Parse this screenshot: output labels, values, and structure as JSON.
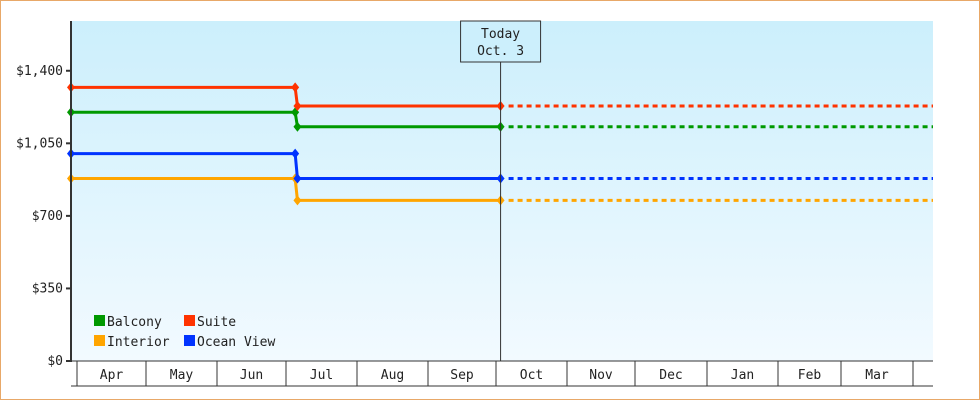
{
  "chart_data": {
    "type": "line",
    "subtype": "step",
    "ylim": [
      0,
      1640
    ],
    "yticks": [
      {
        "value": 0,
        "label": "$0"
      },
      {
        "value": 350,
        "label": "$350"
      },
      {
        "value": 700,
        "label": "$700"
      },
      {
        "value": 1050,
        "label": "$1,050"
      },
      {
        "value": 1400,
        "label": "$1,400"
      }
    ],
    "months": [
      "Apr",
      "May",
      "Jun",
      "Jul",
      "Aug",
      "Sep",
      "Oct",
      "Nov",
      "Dec",
      "Jan",
      "Feb",
      "Mar"
    ],
    "today": {
      "line1": "Today",
      "line2": "Oct. 3",
      "month": "Oct",
      "day": 3
    },
    "legend_position": "bottom-left",
    "background": {
      "top": "#cceffc",
      "bottom": "#f2faff"
    },
    "series": [
      {
        "name": "Balcony",
        "color": "#009900",
        "points": [
          {
            "month": "Apr",
            "day": 1,
            "value": 1200
          },
          {
            "month": "Jul",
            "day": 5,
            "value": 1200
          },
          {
            "month": "Jul",
            "day": 6,
            "value": 1130
          },
          {
            "month": "Oct",
            "day": 3,
            "value": 1130
          }
        ],
        "projection": 1130
      },
      {
        "name": "Suite",
        "color": "#ff3300",
        "points": [
          {
            "month": "Apr",
            "day": 1,
            "value": 1320
          },
          {
            "month": "Jul",
            "day": 5,
            "value": 1320
          },
          {
            "month": "Jul",
            "day": 6,
            "value": 1230
          },
          {
            "month": "Oct",
            "day": 3,
            "value": 1230
          }
        ],
        "projection": 1230
      },
      {
        "name": "Interior",
        "color": "#ffa500",
        "points": [
          {
            "month": "Apr",
            "day": 1,
            "value": 880
          },
          {
            "month": "Jul",
            "day": 5,
            "value": 880
          },
          {
            "month": "Jul",
            "day": 6,
            "value": 775
          },
          {
            "month": "Oct",
            "day": 3,
            "value": 775
          }
        ],
        "projection": 775
      },
      {
        "name": "Ocean View",
        "color": "#0033ff",
        "points": [
          {
            "month": "Apr",
            "day": 1,
            "value": 1000
          },
          {
            "month": "Jul",
            "day": 5,
            "value": 1000
          },
          {
            "month": "Jul",
            "day": 6,
            "value": 880
          },
          {
            "month": "Oct",
            "day": 3,
            "value": 880
          }
        ],
        "projection": 880
      }
    ]
  }
}
